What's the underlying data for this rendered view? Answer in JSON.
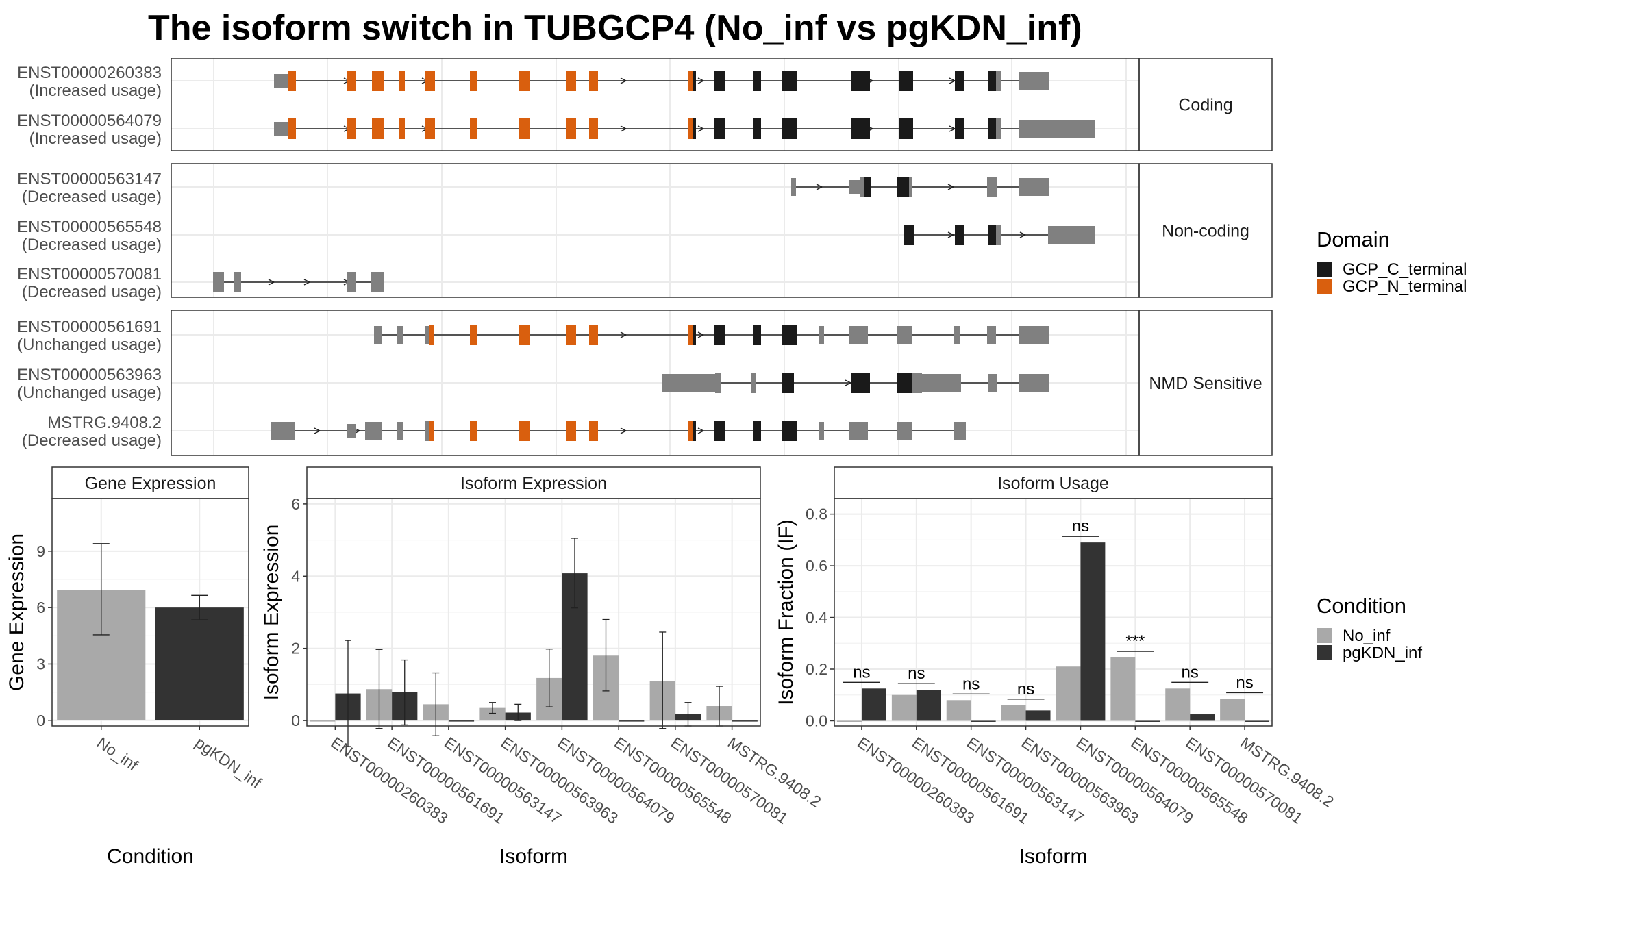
{
  "title": "The isoform switch in TUBGCP4 (No_inf vs pgKDN_inf)",
  "colors": {
    "domain_c": "#1a1a1a",
    "domain_n": "#d95f0e",
    "utr": "#808080",
    "no_inf": "#a9a9a9",
    "pgkdn_inf": "#333333",
    "strip_fill": "#ffffff",
    "grid": "#ebebeb"
  },
  "structure": {
    "groups": [
      {
        "label": "Coding",
        "isoforms": [
          {
            "id": "ENST00000260383",
            "usage": "(Increased usage)"
          },
          {
            "id": "ENST00000564079",
            "usage": "(Increased usage)"
          }
        ]
      },
      {
        "label": "Non-coding",
        "isoforms": [
          {
            "id": "ENST00000563147",
            "usage": "(Decreased usage)"
          },
          {
            "id": "ENST00000565548",
            "usage": "(Decreased usage)"
          },
          {
            "id": "ENST00000570081",
            "usage": "(Decreased usage)"
          }
        ]
      },
      {
        "label": "NMD Sensitive",
        "isoforms": [
          {
            "id": "ENST00000561691",
            "usage": "(Unchanged usage)"
          },
          {
            "id": "ENST00000563963",
            "usage": "(Unchanged usage)"
          },
          {
            "id": "MSTRG.9408.2",
            "usage": "(Decreased usage)"
          }
        ]
      }
    ]
  },
  "domain_legend": {
    "title": "Domain",
    "entries": [
      {
        "label": "GCP_C_terminal",
        "color_key": "domain_c"
      },
      {
        "label": "GCP_N_terminal",
        "color_key": "domain_n"
      }
    ]
  },
  "condition_legend": {
    "title": "Condition",
    "entries": [
      {
        "label": "No_inf",
        "color_key": "no_inf"
      },
      {
        "label": "pgKDN_inf",
        "color_key": "pgkdn_inf"
      }
    ]
  },
  "chart_data": [
    {
      "type": "bar",
      "title": "Gene Expression",
      "xlabel": "Condition",
      "ylabel": "Gene Expression",
      "categories": [
        "No_inf",
        "pgKDN_inf"
      ],
      "values": [
        6.95,
        6.0
      ],
      "error_low": [
        4.55,
        5.35
      ],
      "error_high": [
        9.4,
        6.65
      ],
      "ylim": [
        -0.3,
        11.8
      ],
      "yticks": [
        0,
        3,
        6,
        9
      ],
      "ytick_labels": [
        "0",
        "3",
        "6",
        "9"
      ]
    },
    {
      "type": "bar",
      "title": "Isoform Expression",
      "xlabel": "Isoform",
      "ylabel": "Isoform Expression",
      "categories": [
        "ENST00000260383",
        "ENST00000561691",
        "ENST00000563147",
        "ENST00000563963",
        "ENST00000564079",
        "ENST00000565548",
        "ENST00000570081",
        "MSTRG.9408.2"
      ],
      "series": [
        {
          "name": "No_inf",
          "color_key": "no_inf",
          "values": [
            0.0,
            0.87,
            0.45,
            0.35,
            1.18,
            1.8,
            1.1,
            0.4
          ],
          "error_low": [
            null,
            -0.22,
            -0.42,
            0.2,
            0.38,
            0.82,
            -0.22,
            -0.15
          ],
          "error_high": [
            null,
            1.97,
            1.32,
            0.5,
            1.98,
            2.8,
            2.45,
            0.95
          ]
        },
        {
          "name": "pgKDN_inf",
          "color_key": "pgkdn_inf",
          "values": [
            0.75,
            0.78,
            0.0,
            0.22,
            4.08,
            0.0,
            0.18,
            0.0
          ],
          "error_low": [
            -0.72,
            -0.12,
            null,
            0.0,
            3.12,
            null,
            -0.15,
            null
          ],
          "error_high": [
            2.22,
            1.68,
            null,
            0.45,
            5.05,
            null,
            0.5,
            null
          ]
        }
      ],
      "ylim": [
        -0.15,
        6.15
      ],
      "yticks": [
        0,
        2,
        4,
        6
      ],
      "ytick_labels": [
        "0",
        "2",
        "4",
        "6"
      ]
    },
    {
      "type": "bar",
      "title": "Isoform Usage",
      "xlabel": "Isoform",
      "ylabel": "Isoform Fraction (IF)",
      "categories": [
        "ENST00000260383",
        "ENST00000561691",
        "ENST00000563147",
        "ENST00000563963",
        "ENST00000564079",
        "ENST00000565548",
        "ENST00000570081",
        "MSTRG.9408.2"
      ],
      "series": [
        {
          "name": "No_inf",
          "color_key": "no_inf",
          "values": [
            0.0,
            0.1,
            0.08,
            0.06,
            0.21,
            0.245,
            0.125,
            0.085
          ]
        },
        {
          "name": "pgKDN_inf",
          "color_key": "pgkdn_inf",
          "values": [
            0.125,
            0.12,
            0.0,
            0.04,
            0.69,
            0.0,
            0.025,
            0.0
          ]
        }
      ],
      "significance": [
        "ns",
        "ns",
        "ns",
        "ns",
        "ns",
        "***",
        "ns",
        "ns"
      ],
      "ylim": [
        -0.02,
        0.86
      ],
      "yticks": [
        0.0,
        0.2,
        0.4,
        0.6,
        0.8
      ],
      "ytick_labels": [
        "0.0",
        "0.2",
        "0.4",
        "0.6",
        "0.8"
      ]
    }
  ]
}
